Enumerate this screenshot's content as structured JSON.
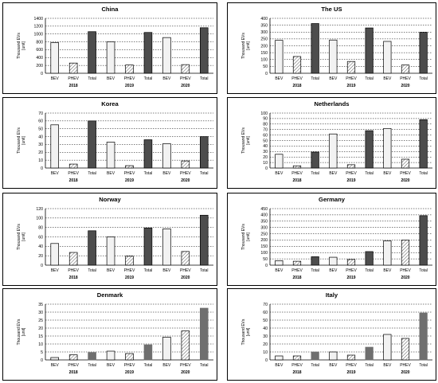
{
  "colors": {
    "bev_fill": "#f2f2f2",
    "phev_hatch": "#555555",
    "total_dark": "#4d4d4d",
    "total_gray": "#6f6f6f"
  },
  "chart_data": [
    {
      "type": "bar",
      "title": "China",
      "ylabel_line1": "Thousand EVs",
      "ylabel_line2": "[unit]",
      "ylim": [
        0,
        1400
      ],
      "ytick_step": 200,
      "years": [
        "2018",
        "2019",
        "2020"
      ],
      "categories": [
        "BEV",
        "PHEV",
        "Total",
        "BEV",
        "PHEV",
        "Total",
        "BEV",
        "PHEV",
        "Total"
      ],
      "values": [
        780,
        260,
        1060,
        800,
        210,
        1040,
        910,
        220,
        1160
      ],
      "total_style": "dark"
    },
    {
      "type": "bar",
      "title": "The US",
      "ylabel_line1": "Thousand EVs",
      "ylabel_line2": "[unit]",
      "ylim": [
        0,
        400
      ],
      "ytick_step": 50,
      "years": [
        "2018",
        "2019",
        "2020"
      ],
      "categories": [
        "BEV",
        "PHEV",
        "Total",
        "BEV",
        "PHEV",
        "Total",
        "BEV",
        "PHEV",
        "Total"
      ],
      "values": [
        240,
        122,
        362,
        242,
        86,
        330,
        232,
        60,
        298
      ],
      "total_style": "dark"
    },
    {
      "type": "bar",
      "title": "Korea",
      "ylabel_line1": "Thousand EVs",
      "ylabel_line2": "[unit]",
      "ylim": [
        0,
        70
      ],
      "ytick_step": 10,
      "years": [
        "2018",
        "2019",
        "2020"
      ],
      "categories": [
        "BEV",
        "PHEV",
        "Total",
        "BEV",
        "PHEV",
        "Total",
        "BEV",
        "PHEV",
        "Total"
      ],
      "values": [
        55,
        5,
        60,
        33,
        3,
        36,
        31,
        9,
        40
      ],
      "total_style": "dark"
    },
    {
      "type": "bar",
      "title": "Netherlands",
      "ylabel_line1": "Thousand EVs",
      "ylabel_line2": "[unit]",
      "ylim": [
        0,
        100
      ],
      "ytick_step": 10,
      "years": [
        "2018",
        "2019",
        "2020"
      ],
      "categories": [
        "BEV",
        "PHEV",
        "Total",
        "BEV",
        "PHEV",
        "Total",
        "BEV",
        "PHEV",
        "Total"
      ],
      "values": [
        25,
        4,
        29,
        62,
        6,
        68,
        72,
        16,
        88
      ],
      "total_style": "dark"
    },
    {
      "type": "bar",
      "title": "Norway",
      "ylabel_line1": "Thousand EVs",
      "ylabel_line2": "[unit]",
      "ylim": [
        0,
        120
      ],
      "ytick_step": 20,
      "years": [
        "2018",
        "2019",
        "2020"
      ],
      "categories": [
        "BEV",
        "PHEV",
        "Total",
        "BEV",
        "PHEV",
        "Total",
        "BEV",
        "PHEV",
        "Total"
      ],
      "values": [
        46,
        27,
        73,
        60,
        19,
        79,
        77,
        29,
        106
      ],
      "total_style": "dark"
    },
    {
      "type": "bar",
      "title": "Germany",
      "ylabel_line1": "Thousand EVs",
      "ylabel_line2": "[unit]",
      "ylim": [
        0,
        450
      ],
      "ytick_step": 50,
      "years": [
        "2018",
        "2019",
        "2020"
      ],
      "categories": [
        "BEV",
        "PHEV",
        "Total",
        "BEV",
        "PHEV",
        "Total",
        "BEV",
        "PHEV",
        "Total"
      ],
      "values": [
        36,
        31,
        67,
        63,
        45,
        108,
        194,
        200,
        394
      ],
      "total_style": "dark"
    },
    {
      "type": "bar",
      "title": "Denmark",
      "ylabel_line1": "Thousand EVs",
      "ylabel_line2": "[unit]",
      "ylim": [
        0,
        35
      ],
      "ytick_step": 5,
      "years": [
        "2018",
        "2019",
        "2020"
      ],
      "categories": [
        "BEV",
        "PHEV",
        "Total",
        "BEV",
        "PHEV",
        "Total",
        "BEV",
        "PHEV",
        "Total"
      ],
      "values": [
        1.5,
        3.2,
        4.7,
        5.5,
        4.0,
        9.5,
        14.3,
        18.2,
        32.5
      ],
      "total_style": "gray"
    },
    {
      "type": "bar",
      "title": "Italy",
      "ylabel_line1": "Thousand EVs",
      "ylabel_line2": "[unit]",
      "ylim": [
        0,
        70
      ],
      "ytick_step": 10,
      "years": [
        "2018",
        "2019",
        "2020"
      ],
      "categories": [
        "BEV",
        "PHEV",
        "Total",
        "BEV",
        "PHEV",
        "Total",
        "BEV",
        "PHEV",
        "Total"
      ],
      "values": [
        5,
        5,
        10,
        10,
        6,
        16,
        32,
        27,
        59
      ],
      "total_style": "gray"
    }
  ]
}
